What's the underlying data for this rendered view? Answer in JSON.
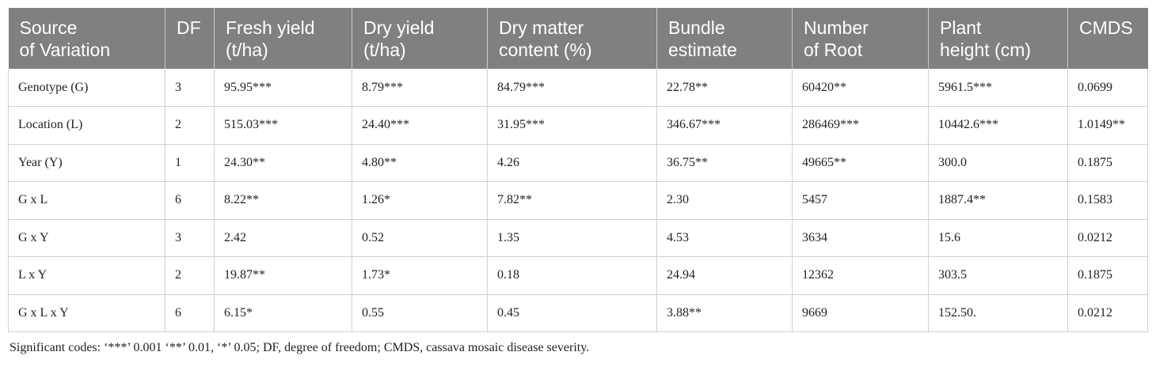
{
  "table": {
    "headers": [
      "Source\nof Variation",
      "DF",
      "Fresh yield\n(t/ha)",
      "Dry yield\n(t/ha)",
      "Dry matter\ncontent (%)",
      "Bundle\nestimate",
      "Number\nof Root",
      "Plant\nheight (cm)",
      "CMDS"
    ],
    "rows": [
      [
        "Genotype (G)",
        "3",
        "95.95***",
        "8.79***",
        "84.79***",
        "22.78**",
        "60420**",
        "5961.5***",
        "0.0699"
      ],
      [
        "Location (L)",
        "2",
        "515.03***",
        "24.40***",
        "31.95***",
        "346.67***",
        "286469***",
        "10442.6***",
        "1.0149**"
      ],
      [
        "Year (Y)",
        "1",
        "24.30**",
        "4.80**",
        "4.26",
        "36.75**",
        "49665**",
        "300.0",
        "0.1875"
      ],
      [
        "G x L",
        "6",
        "8.22**",
        "1.26*",
        "7.82**",
        "2.30",
        "5457",
        "1887.4**",
        "0.1583"
      ],
      [
        "G x Y",
        "3",
        "2.42",
        "0.52",
        "1.35",
        "4.53",
        "3634",
        "15.6",
        "0.0212"
      ],
      [
        "L x Y",
        "2",
        "19.87**",
        "1.73*",
        "0.18",
        "24.94",
        "12362",
        "303.5",
        "0.1875"
      ],
      [
        "G x L x Y",
        "6",
        "6.15*",
        "0.55",
        "0.45",
        "3.88**",
        "9669",
        "152.50.",
        "0.0212"
      ]
    ]
  },
  "footnote": "Significant codes: ‘***’ 0.001 ‘**’ 0.01, ‘*’ 0.05; DF, degree of freedom; CMDS, cassava mosaic disease severity."
}
